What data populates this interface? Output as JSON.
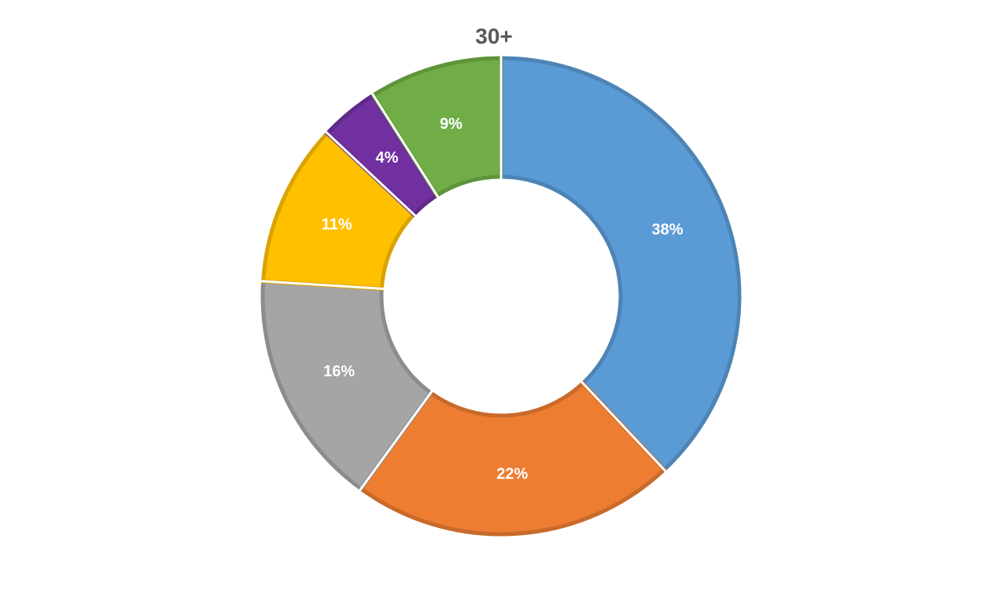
{
  "chart_data": {
    "type": "donut",
    "title": "30+",
    "values": [
      38,
      22,
      16,
      11,
      4,
      9
    ],
    "value_labels": [
      "38%",
      "22%",
      "16%",
      "11%",
      "4%",
      "9%"
    ],
    "colors": [
      "#5b9bd5",
      "#ed7d31",
      "#a5a5a5",
      "#ffc000",
      "#7030a0",
      "#70ad47"
    ]
  }
}
